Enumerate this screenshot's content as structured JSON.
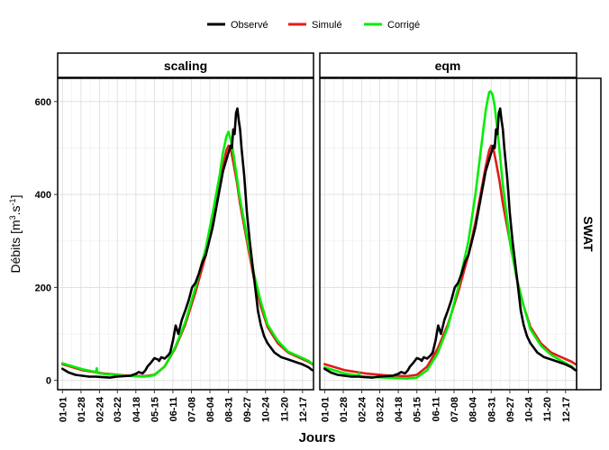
{
  "chart_data": {
    "type": "line",
    "xlabel": "Jours",
    "ylabel_main": "Débits [m",
    "ylabel_sup1": "3",
    "ylabel_mid": ".s",
    "ylabel_sup2": "-1",
    "ylabel_end": "]",
    "row_strip": "SWAT",
    "legend": [
      {
        "name": "Observé",
        "color": "#000000"
      },
      {
        "name": "Simulé",
        "color": "#e41a1c"
      },
      {
        "name": "Corrigé",
        "color": "#00ee00"
      }
    ],
    "x_ticks": [
      "01-01",
      "01-28",
      "02-24",
      "03-22",
      "04-18",
      "05-15",
      "06-11",
      "07-08",
      "08-04",
      "08-31",
      "09-27",
      "10-24",
      "11-20",
      "12-17"
    ],
    "x_tick_days": [
      1,
      28,
      55,
      81,
      108,
      135,
      162,
      189,
      216,
      243,
      270,
      297,
      324,
      351
    ],
    "xlim": [
      -6,
      367
    ],
    "ylim": [
      -20,
      650
    ],
    "y_ticks": [
      0,
      200,
      400,
      600
    ],
    "panels": [
      {
        "title": "scaling",
        "series": [
          {
            "name": "Observé",
            "x": [
              1,
              10,
              20,
              30,
              40,
              50,
              60,
              70,
              80,
              90,
              100,
              108,
              112,
              118,
              122,
              125,
              130,
              135,
              140,
              142,
              145,
              150,
              155,
              158,
              162,
              166,
              170,
              175,
              180,
              185,
              190,
              195,
              200,
              205,
              210,
              215,
              220,
              225,
              230,
              235,
              240,
              243,
              246,
              248,
              250,
              252,
              254,
              256,
              258,
              260,
              262,
              264,
              266,
              268,
              270,
              274,
              278,
              282,
              286,
              290,
              295,
              300,
              305,
              310,
              320,
              330,
              340,
              350,
              360,
              365
            ],
            "y": [
              25,
              17,
              12,
              10,
              8,
              8,
              7,
              6,
              8,
              9,
              10,
              14,
              18,
              15,
              22,
              30,
              38,
              48,
              45,
              42,
              50,
              47,
              54,
              60,
              85,
              118,
              100,
              130,
              150,
              172,
              200,
              210,
              230,
              255,
              270,
              300,
              330,
              370,
              410,
              450,
              475,
              490,
              505,
              500,
              540,
              530,
              575,
              585,
              560,
              540,
              500,
              470,
              440,
              400,
              360,
              300,
              250,
              200,
              150,
              120,
              95,
              80,
              70,
              60,
              50,
              45,
              40,
              35,
              28,
              22
            ]
          },
          {
            "name": "Simulé",
            "x": [
              1,
              30,
              60,
              90,
              120,
              135,
              150,
              165,
              180,
              195,
              210,
              220,
              230,
              235,
              240,
              243,
              246,
              250,
              255,
              260,
              270,
              280,
              290,
              300,
              315,
              330,
              345,
              360,
              365
            ],
            "y": [
              35,
              22,
              15,
              11,
              9,
              12,
              30,
              68,
              120,
              190,
              270,
              340,
              420,
              460,
              495,
              505,
              500,
              470,
              430,
              380,
              300,
              220,
              160,
              115,
              80,
              60,
              50,
              40,
              35
            ]
          },
          {
            "name": "Corrigé",
            "x": [
              1,
              30,
              50,
              51,
              52,
              60,
              90,
              120,
              135,
              150,
              165,
              180,
              195,
              210,
              220,
              230,
              235,
              240,
              243,
              246,
              250,
              255,
              260,
              270,
              280,
              290,
              300,
              315,
              330,
              345,
              360,
              365
            ],
            "y": [
              37,
              24,
              18,
              26,
              16,
              14,
              10,
              8,
              11,
              30,
              70,
              125,
              200,
              285,
              360,
              440,
              490,
              525,
              535,
              520,
              490,
              440,
              390,
              310,
              230,
              170,
              120,
              85,
              62,
              52,
              42,
              36
            ]
          }
        ]
      },
      {
        "title": "eqm",
        "series": [
          {
            "name": "Observé",
            "x": [
              1,
              10,
              20,
              30,
              40,
              50,
              60,
              70,
              80,
              90,
              100,
              108,
              112,
              118,
              122,
              125,
              130,
              135,
              140,
              142,
              145,
              150,
              155,
              158,
              162,
              166,
              170,
              175,
              180,
              185,
              190,
              195,
              200,
              205,
              210,
              215,
              220,
              225,
              230,
              235,
              240,
              243,
              246,
              248,
              250,
              252,
              254,
              256,
              258,
              260,
              262,
              264,
              266,
              268,
              270,
              274,
              278,
              282,
              286,
              290,
              295,
              300,
              305,
              310,
              320,
              330,
              340,
              350,
              360,
              365
            ],
            "y": [
              25,
              17,
              12,
              10,
              8,
              8,
              7,
              6,
              8,
              9,
              10,
              14,
              18,
              15,
              22,
              30,
              38,
              48,
              45,
              42,
              50,
              47,
              54,
              60,
              85,
              118,
              100,
              130,
              150,
              172,
              200,
              210,
              230,
              255,
              270,
              300,
              330,
              370,
              410,
              450,
              475,
              490,
              505,
              500,
              540,
              530,
              575,
              585,
              560,
              540,
              500,
              470,
              440,
              400,
              360,
              300,
              250,
              200,
              150,
              120,
              95,
              80,
              70,
              60,
              50,
              45,
              40,
              35,
              28,
              22
            ]
          },
          {
            "name": "Simulé",
            "x": [
              1,
              30,
              60,
              90,
              120,
              135,
              150,
              165,
              180,
              195,
              210,
              220,
              230,
              235,
              240,
              243,
              246,
              250,
              255,
              260,
              270,
              280,
              290,
              300,
              315,
              330,
              345,
              360,
              365
            ],
            "y": [
              35,
              22,
              15,
              11,
              9,
              12,
              30,
              68,
              120,
              190,
              270,
              340,
              420,
              460,
              495,
              505,
              500,
              470,
              430,
              380,
              300,
              220,
              160,
              115,
              80,
              60,
              50,
              40,
              35
            ]
          },
          {
            "name": "Corrigé",
            "x": [
              1,
              30,
              50,
              51,
              52,
              60,
              90,
              120,
              135,
              150,
              165,
              180,
              195,
              210,
              220,
              230,
              235,
              238,
              240,
              242,
              245,
              248,
              252,
              256,
              260,
              265,
              270,
              280,
              290,
              300,
              315,
              330,
              345,
              360,
              365
            ],
            "y": [
              28,
              15,
              10,
              16,
              9,
              8,
              6,
              4,
              6,
              22,
              58,
              115,
              200,
              300,
              400,
              520,
              580,
              605,
              620,
              622,
              615,
              590,
              540,
              480,
              420,
              360,
              300,
              220,
              160,
              110,
              75,
              55,
              42,
              30,
              22
            ]
          }
        ]
      }
    ]
  }
}
